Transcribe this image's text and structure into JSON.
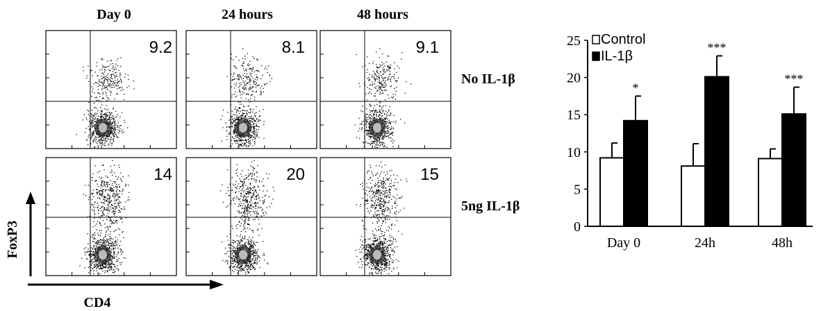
{
  "flow": {
    "columns": [
      "Day 0",
      "24 hours",
      "48 hours"
    ],
    "rows": [
      "No IL-1β",
      "5ng  IL-1β"
    ],
    "percentages": [
      [
        "9.2",
        "8.1",
        "9.1"
      ],
      [
        "14",
        "20",
        "15"
      ]
    ],
    "y_axis_label": "FoxP3",
    "x_axis_label": "CD4"
  },
  "chart_data": {
    "type": "bar",
    "categories": [
      "Day 0",
      "24h",
      "48h"
    ],
    "series": [
      {
        "name": "Control",
        "values": [
          9.2,
          8.1,
          9.1
        ],
        "errors": [
          2.0,
          3.0,
          1.3
        ],
        "color": "#ffffff"
      },
      {
        "name": "IL-1β",
        "values": [
          14.2,
          20.1,
          15.1
        ],
        "errors": [
          3.3,
          2.8,
          3.6
        ],
        "color": "#000000"
      }
    ],
    "significance": [
      "*",
      "***",
      "***"
    ],
    "ylim": [
      0,
      25
    ],
    "yticks": [
      0,
      5,
      10,
      15,
      20,
      25
    ],
    "title": "",
    "xlabel": "",
    "ylabel": "",
    "legend_position": "top-left",
    "grid": false
  }
}
